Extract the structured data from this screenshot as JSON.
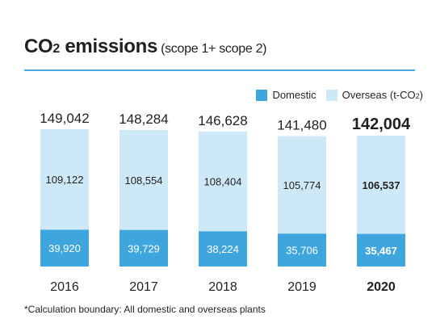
{
  "title": {
    "main_prefix": "CO",
    "main_subscript": "2",
    "main_suffix": " emissions",
    "scope": "(scope 1+ scope 2)"
  },
  "legend": {
    "domestic": "Domestic",
    "overseas_prefix": "Overseas (t-CO",
    "overseas_subscript": "2",
    "overseas_suffix": ")"
  },
  "colors": {
    "domestic": "#3fa6dd",
    "overseas": "#cde8f6",
    "accent_rule": "#4ea9dc",
    "text": "#231f20"
  },
  "footnote": "*Calculation boundary: All domestic and overseas plants",
  "chart_data": {
    "type": "bar",
    "stacked": true,
    "categories": [
      "2016",
      "2017",
      "2018",
      "2019",
      "2020"
    ],
    "series": [
      {
        "name": "Domestic",
        "values": [
          39920,
          39729,
          38224,
          35706,
          35467
        ]
      },
      {
        "name": "Overseas (t-CO2)",
        "values": [
          109122,
          108554,
          108404,
          105774,
          106537
        ]
      }
    ],
    "totals": [
      149042,
      148284,
      146628,
      141480,
      142004
    ],
    "labels": {
      "domestic": [
        "39,920",
        "39,729",
        "38,224",
        "35,706",
        "35,467"
      ],
      "overseas": [
        "109,122",
        "108,554",
        "108,404",
        "105,774",
        "106,537"
      ],
      "totals": [
        "149,042",
        "148,284",
        "146,628",
        "141,480",
        "142,004"
      ]
    },
    "highlight_index": 4,
    "ylim": [
      0,
      149042
    ],
    "legend_position": "top-right",
    "grid": false
  }
}
